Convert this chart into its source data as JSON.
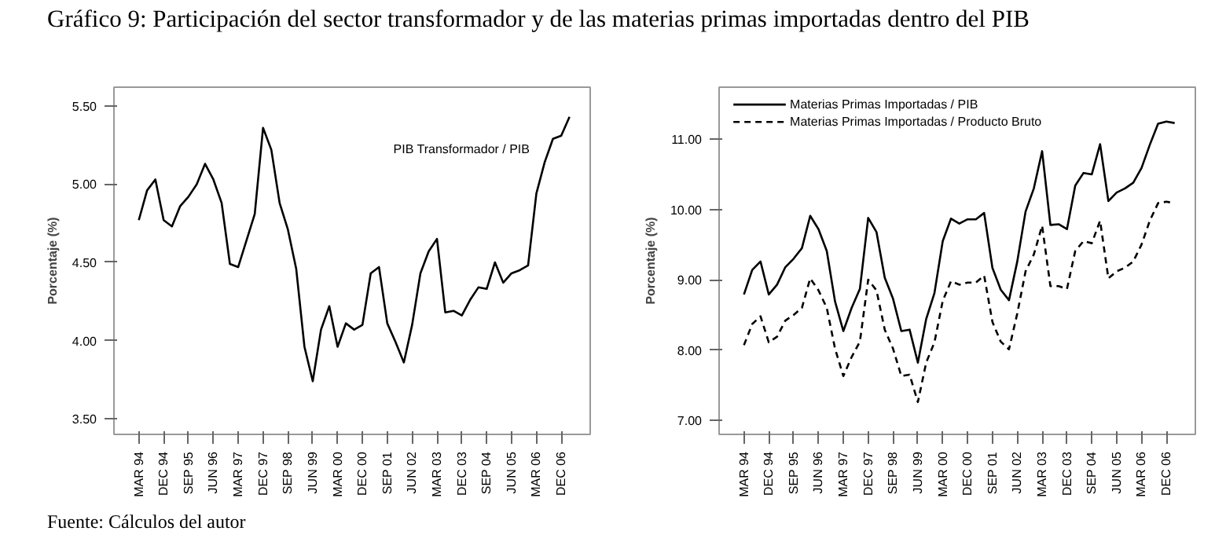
{
  "chart_data": [
    {
      "type": "line",
      "title": "Gráfico 9: Participación del sector transformador y de las materias primas importadas dentro del PIB",
      "annotations": [
        "Fuente: Cálculos del autor"
      ],
      "ylabel": "Porcentaje (%)",
      "categories": [
        "MAR 94",
        null,
        null,
        "DEC 94",
        null,
        null,
        "SEP 95",
        null,
        null,
        "JUN 96",
        null,
        null,
        "MAR 97",
        null,
        null,
        "DEC 97",
        null,
        null,
        "SEP 98",
        null,
        null,
        "JUN 99",
        null,
        null,
        "MAR 00",
        null,
        null,
        "DEC 00",
        null,
        null,
        "SEP 01",
        null,
        null,
        "JUN 02",
        null,
        null,
        "MAR 03",
        null,
        null,
        "DEC 03",
        null,
        null,
        "SEP 04",
        null,
        null,
        "JUN 05",
        null,
        null,
        "MAR 06",
        null,
        null,
        "DEC 06",
        null
      ],
      "ylim": [
        3.4,
        5.62
      ],
      "yticks": [
        {
          "value": 3.5,
          "label": "3.50"
        },
        {
          "value": 4.0,
          "label": "4.00"
        },
        {
          "value": 4.5,
          "label": "4.50"
        },
        {
          "value": 5.0,
          "label": "5.00"
        },
        {
          "value": 5.5,
          "label": "5.50"
        }
      ],
      "grid": false,
      "legend": false,
      "marker": "none",
      "series": [
        {
          "name": "PIB Transformador / PIB",
          "color": "#000000",
          "line_style": "solid",
          "values": [
            4.77,
            4.96,
            5.03,
            4.77,
            4.73,
            4.86,
            4.92,
            5.0,
            5.13,
            5.03,
            4.88,
            4.49,
            4.47,
            4.64,
            4.81,
            5.36,
            5.22,
            4.88,
            4.71,
            4.46,
            3.96,
            3.74,
            4.07,
            4.22,
            3.96,
            4.11,
            4.07,
            4.1,
            4.43,
            4.47,
            4.11,
            3.99,
            3.86,
            4.1,
            4.43,
            4.57,
            4.65,
            4.18,
            4.19,
            4.16,
            4.26,
            4.34,
            4.33,
            4.5,
            4.37,
            4.43,
            4.45,
            4.48,
            4.94,
            5.14,
            5.29,
            5.31,
            5.43
          ]
        }
      ]
    },
    {
      "type": "line",
      "ylabel": "Porcentaje (%)",
      "categories": [
        "MAR 94",
        null,
        null,
        "DEC 94",
        null,
        null,
        "SEP 95",
        null,
        null,
        "JUN 96",
        null,
        null,
        "MAR 97",
        null,
        null,
        "DEC 97",
        null,
        null,
        "SEP 98",
        null,
        null,
        "JUN 99",
        null,
        null,
        "MAR 00",
        null,
        null,
        "DEC 00",
        null,
        null,
        "SEP 01",
        null,
        null,
        "JUN 02",
        null,
        null,
        "MAR 03",
        null,
        null,
        "DEC 03",
        null,
        null,
        "SEP 04",
        null,
        null,
        "JUN 05",
        null,
        null,
        "MAR 06",
        null,
        null,
        "DEC 06",
        null
      ],
      "ylim": [
        6.8,
        11.74
      ],
      "yticks": [
        {
          "value": 7,
          "label": "7.00"
        },
        {
          "value": 8,
          "label": "8.00"
        },
        {
          "value": 9,
          "label": "9.00"
        },
        {
          "value": 10,
          "label": "10.00"
        },
        {
          "value": 11,
          "label": "11.00"
        }
      ],
      "grid": false,
      "legend": "top left",
      "marker": "none",
      "series": [
        {
          "name": "Materias Primas Importadas / PIB",
          "color": "#000000",
          "line_style": "solid",
          "values": [
            8.79,
            9.14,
            9.26,
            8.79,
            8.93,
            9.18,
            9.3,
            9.45,
            9.91,
            9.72,
            9.41,
            8.69,
            8.27,
            8.6,
            8.87,
            9.88,
            9.68,
            9.03,
            8.73,
            8.27,
            8.29,
            7.82,
            8.44,
            8.81,
            9.55,
            9.87,
            9.8,
            9.86,
            9.86,
            9.95,
            9.17,
            8.86,
            8.71,
            9.26,
            9.97,
            10.3,
            10.83,
            9.78,
            9.79,
            9.72,
            10.34,
            10.52,
            10.5,
            10.93,
            10.12,
            10.24,
            10.3,
            10.38,
            10.59,
            10.92,
            11.22,
            11.25,
            11.23
          ]
        },
        {
          "name": "Materias Primas Importadas / Producto Bruto",
          "color": "#000000",
          "line_style": "dashed",
          "values": [
            8.07,
            8.37,
            8.48,
            8.11,
            8.19,
            8.42,
            8.5,
            8.6,
            9.02,
            8.85,
            8.6,
            8.02,
            7.63,
            7.9,
            8.12,
            9.0,
            8.85,
            8.29,
            8.02,
            7.63,
            7.65,
            7.26,
            7.82,
            8.11,
            8.7,
            8.98,
            8.93,
            8.96,
            8.96,
            9.06,
            8.4,
            8.12,
            8.01,
            8.52,
            9.12,
            9.36,
            9.77,
            8.91,
            8.91,
            8.87,
            9.41,
            9.55,
            9.52,
            9.84,
            9.02,
            9.12,
            9.17,
            9.26,
            9.5,
            9.84,
            10.09,
            10.11,
            10.09
          ]
        }
      ]
    }
  ]
}
